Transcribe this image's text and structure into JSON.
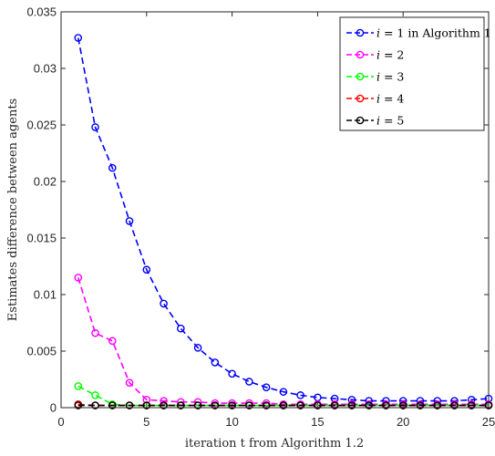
{
  "chart_data": {
    "type": "line",
    "xlabel": "iteration t from Algorithm 1.2",
    "ylabel": "Estimates difference between agents",
    "xlim": [
      0,
      25
    ],
    "ylim": [
      0,
      0.035
    ],
    "xticks": [
      0,
      5,
      10,
      15,
      20,
      25
    ],
    "yticks": [
      0,
      0.005,
      0.01,
      0.015,
      0.02,
      0.025,
      0.03,
      0.035
    ],
    "ytick_labels": [
      "0",
      "0.005",
      "0.01",
      "0.015",
      "0.02",
      "0.025",
      "0.03",
      "0.035"
    ],
    "grid": false,
    "legend_position": "top-right",
    "x": [
      1,
      2,
      3,
      4,
      5,
      6,
      7,
      8,
      9,
      10,
      11,
      12,
      13,
      14,
      15,
      16,
      17,
      18,
      19,
      20,
      21,
      22,
      23,
      24,
      25
    ],
    "series": [
      {
        "name": "i = 1 in Algorithm 1",
        "name_parts": [
          "i",
          " = 1 in Algorithm 1"
        ],
        "color": "#0000ff",
        "values": [
          0.0327,
          0.0248,
          0.0212,
          0.0165,
          0.0122,
          0.0092,
          0.007,
          0.0053,
          0.004,
          0.003,
          0.0023,
          0.0018,
          0.0014,
          0.0011,
          0.0009,
          0.0008,
          0.0007,
          0.0006,
          0.0006,
          0.0006,
          0.0006,
          0.0006,
          0.0006,
          0.0007,
          0.0008
        ]
      },
      {
        "name": "i = 2",
        "name_parts": [
          "i",
          " = 2"
        ],
        "color": "#ff00ff",
        "values": [
          0.0115,
          0.0066,
          0.0059,
          0.0022,
          0.0007,
          0.0006,
          0.0005,
          0.0005,
          0.0004,
          0.0004,
          0.0004,
          0.0004,
          0.0003,
          0.0003,
          0.0003,
          0.0003,
          0.0003,
          0.0003,
          0.0003,
          0.0003,
          0.0003,
          0.0003,
          0.0003,
          0.0003,
          0.0003
        ]
      },
      {
        "name": "i = 3",
        "name_parts": [
          "i",
          " = 3"
        ],
        "color": "#00ff00",
        "values": [
          0.0019,
          0.0011,
          0.0003,
          0.0002,
          0.0002,
          0.0002,
          0.0002,
          0.0002,
          0.0002,
          0.0002,
          0.0002,
          0.0002,
          0.0002,
          0.0002,
          0.0002,
          0.0002,
          0.0002,
          0.0002,
          0.0002,
          0.0002,
          0.0002,
          0.0002,
          0.0002,
          0.0002,
          0.0002
        ]
      },
      {
        "name": "i = 4",
        "name_parts": [
          "i",
          " = 4"
        ],
        "color": "#ff0000",
        "values": [
          0.0003,
          0.0002,
          0.0002,
          0.0002,
          0.0002,
          0.0002,
          0.0002,
          0.0002,
          0.0002,
          0.0002,
          0.0002,
          0.0002,
          0.0002,
          0.0002,
          0.0002,
          0.0002,
          0.0002,
          0.0002,
          0.0002,
          0.0002,
          0.0002,
          0.0002,
          0.0002,
          0.0002,
          0.0002
        ]
      },
      {
        "name": "i = 5",
        "name_parts": [
          "i",
          " = 5"
        ],
        "color": "#000000",
        "values": [
          0.0002,
          0.0002,
          0.0002,
          0.0002,
          0.0002,
          0.0002,
          0.0002,
          0.0002,
          0.0002,
          0.0002,
          0.0002,
          0.0002,
          0.0002,
          0.0002,
          0.0002,
          0.0002,
          0.0002,
          0.0002,
          0.0002,
          0.0002,
          0.0002,
          0.0002,
          0.0002,
          0.0002,
          0.0002
        ]
      }
    ]
  }
}
